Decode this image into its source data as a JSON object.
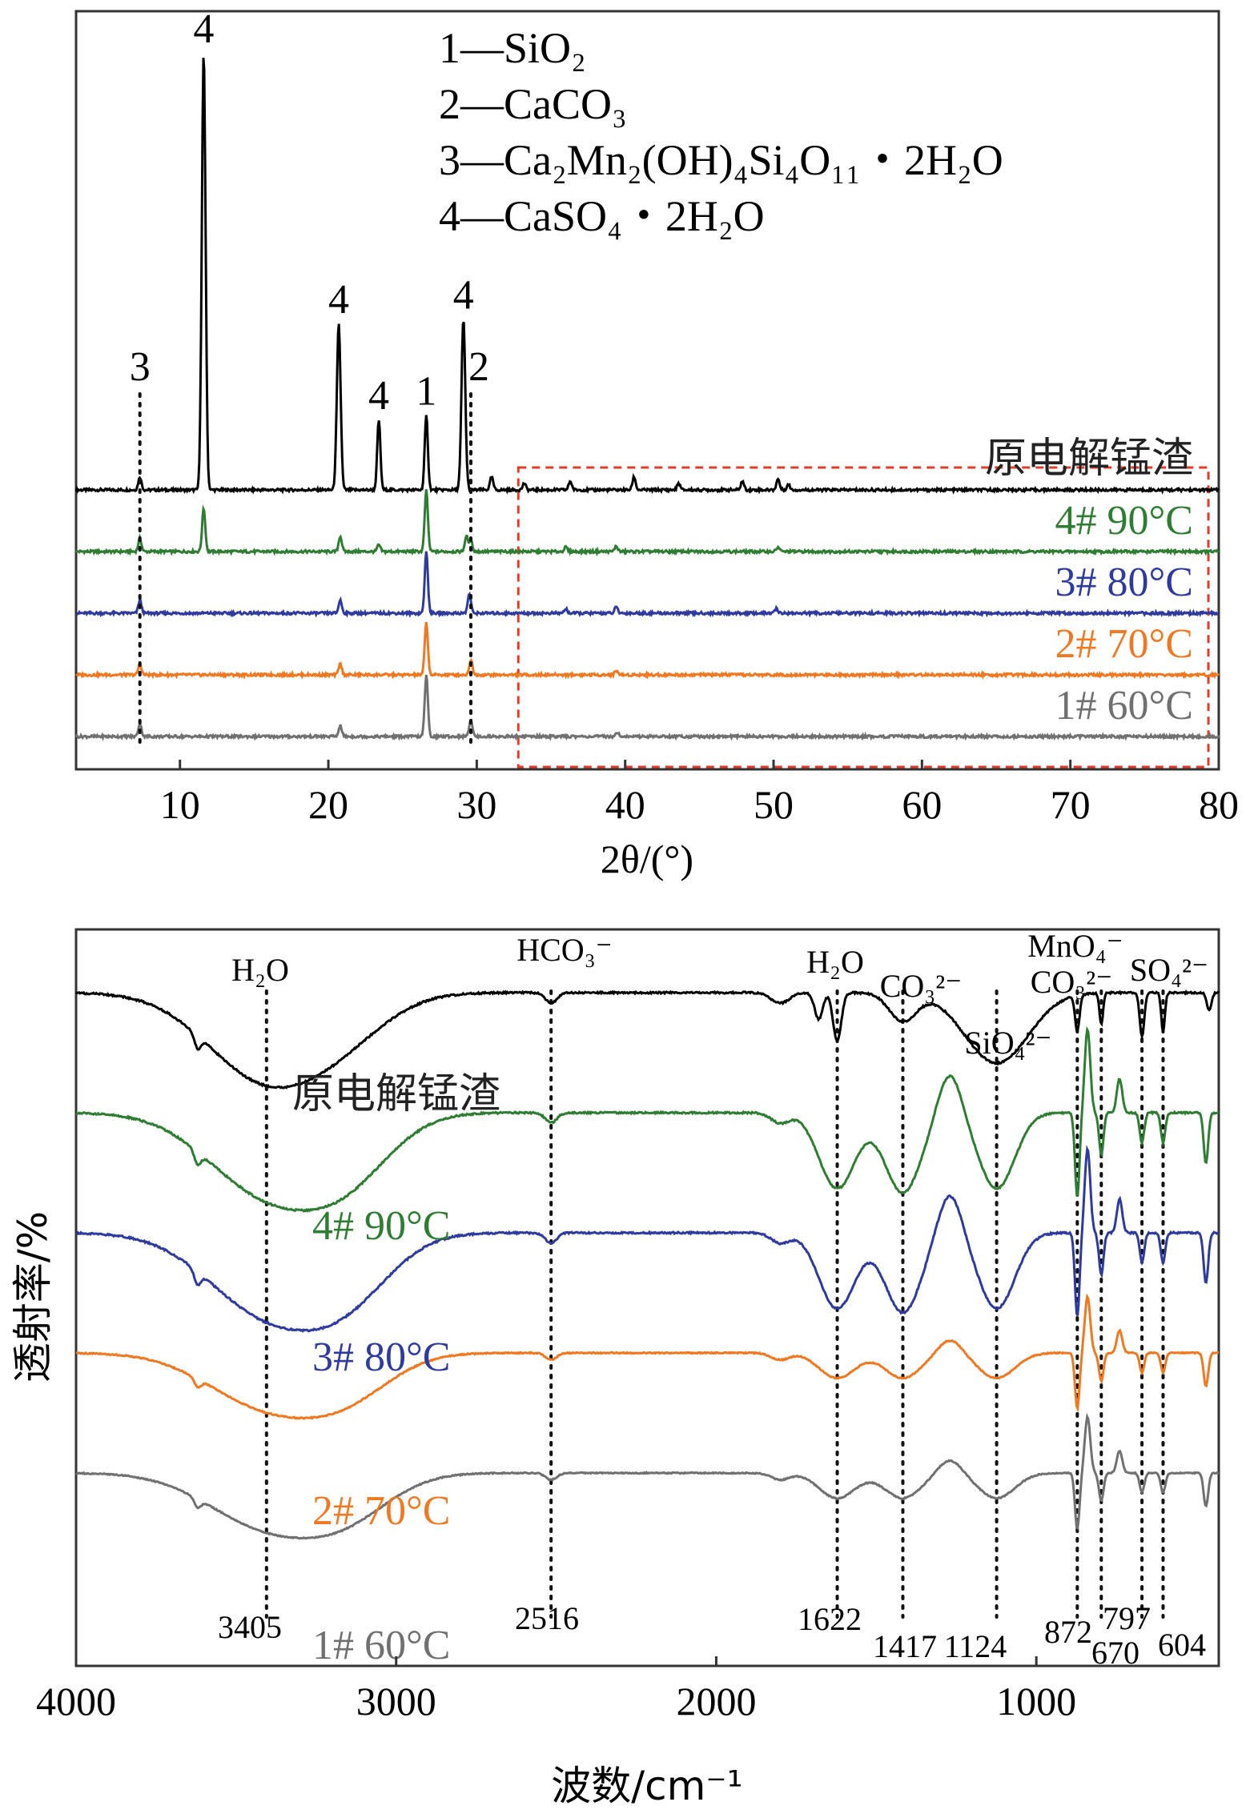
{
  "chart_data": [
    {
      "type": "line",
      "title": "",
      "xlabel": "2θ/(°)",
      "ylabel": "",
      "xlim": [
        3,
        80
      ],
      "xticks": [
        10,
        20,
        30,
        40,
        50,
        60,
        70,
        80
      ],
      "xtick_labels": [
        "10",
        "20",
        "30",
        "40",
        "50",
        "60",
        "70",
        "80"
      ],
      "legend": [
        {
          "num": "1",
          "sep": "—",
          "text": "SiO₂"
        },
        {
          "num": "2",
          "sep": "—",
          "text": "CaCO₃"
        },
        {
          "num": "3",
          "sep": "—",
          "text": "Ca₂Mn₂(OH)₄Si₄O₁₁・2H₂O"
        },
        {
          "num": "4",
          "sep": "—",
          "text": "CaSO₄・2H₂O"
        }
      ],
      "peak_labels": [
        {
          "label": "3",
          "x": 7.3,
          "dotted": true
        },
        {
          "label": "4",
          "x": 11.6,
          "dotted": false
        },
        {
          "label": "4",
          "x": 20.7,
          "dotted": false
        },
        {
          "label": "4",
          "x": 23.4,
          "dotted": false
        },
        {
          "label": "1",
          "x": 26.6,
          "dotted": false
        },
        {
          "label": "4",
          "x": 29.1,
          "dotted": false
        },
        {
          "label": "2",
          "x": 29.6,
          "dotted": true
        }
      ],
      "highlight_region": {
        "x_from": 32.8,
        "x_to": 79.3,
        "style": "red dashed box"
      },
      "series": [
        {
          "name": "原电解锰渣",
          "color": "#000000",
          "baseline": 0,
          "peaks": [
            [
              7.3,
              0.03
            ],
            [
              11.6,
              1.0
            ],
            [
              20.7,
              0.38
            ],
            [
              23.4,
              0.16
            ],
            [
              26.6,
              0.17
            ],
            [
              29.1,
              0.39
            ],
            [
              31.0,
              0.03
            ],
            [
              33.2,
              0.015
            ],
            [
              36.3,
              0.02
            ],
            [
              40.6,
              0.03
            ],
            [
              43.6,
              0.015
            ],
            [
              47.9,
              0.02
            ],
            [
              50.3,
              0.025
            ],
            [
              51.0,
              0.012
            ]
          ]
        },
        {
          "name": "4# 90°C",
          "color": "#2e7d32",
          "baseline": 0.14,
          "peaks": [
            [
              7.3,
              0.03
            ],
            [
              11.6,
              0.1
            ],
            [
              20.8,
              0.035
            ],
            [
              23.4,
              0.015
            ],
            [
              26.6,
              0.14
            ],
            [
              29.3,
              0.035
            ],
            [
              29.6,
              0.025
            ],
            [
              36.0,
              0.01
            ],
            [
              39.4,
              0.012
            ],
            [
              50.3,
              0.01
            ]
          ]
        },
        {
          "name": "3# 80°C",
          "color": "#2e3a9e",
          "baseline": 0.28,
          "peaks": [
            [
              7.3,
              0.03
            ],
            [
              20.8,
              0.03
            ],
            [
              26.6,
              0.14
            ],
            [
              29.5,
              0.045
            ],
            [
              36.0,
              0.01
            ],
            [
              39.4,
              0.014
            ],
            [
              50.2,
              0.01
            ]
          ]
        },
        {
          "name": "2# 70°C",
          "color": "#f07820",
          "baseline": 0.42,
          "peaks": [
            [
              7.3,
              0.025
            ],
            [
              20.8,
              0.025
            ],
            [
              26.6,
              0.12
            ],
            [
              29.6,
              0.035
            ],
            [
              39.4,
              0.01
            ]
          ]
        },
        {
          "name": "1# 60°C",
          "color": "#707070",
          "baseline": 0.56,
          "peaks": [
            [
              7.3,
              0.03
            ],
            [
              20.8,
              0.025
            ],
            [
              26.6,
              0.14
            ],
            [
              29.6,
              0.04
            ],
            [
              39.5,
              0.01
            ]
          ]
        }
      ]
    },
    {
      "type": "line",
      "title": "",
      "xlabel": "波数/cm⁻¹",
      "ylabel": "透射率/%",
      "xlim": [
        4000,
        430
      ],
      "xticks": [
        4000,
        3000,
        2000,
        1000
      ],
      "xtick_labels": [
        "4000",
        "3000",
        "2000",
        "1000"
      ],
      "band_labels": [
        {
          "label": "H₂O",
          "x": 3405
        },
        {
          "label": "HCO₃⁻",
          "x": 2516
        },
        {
          "label": "H₂O",
          "x": 1622
        },
        {
          "label": "CO₃²⁻",
          "x": 1417
        },
        {
          "label": "SiO₄²⁻",
          "x": 1124
        },
        {
          "label": "MnO₄⁻",
          "x": 797
        },
        {
          "label": "CO₃²⁻",
          "x": 872
        },
        {
          "label": "SO₄²⁻",
          "x": 604
        }
      ],
      "wavenumber_marks": [
        "3405",
        "2516",
        "1622",
        "1417",
        "1124",
        "872",
        "797",
        "670",
        "604"
      ],
      "wavenumber_values": [
        3405,
        2516,
        1622,
        1417,
        1124,
        872,
        797,
        670,
        604
      ],
      "series": [
        {
          "name": "原电解锰渣",
          "color": "#000000",
          "offset": 0
        },
        {
          "name": "4# 90°C",
          "color": "#2e7d32",
          "offset": 1
        },
        {
          "name": "3# 80°C",
          "color": "#2e3a9e",
          "offset": 2
        },
        {
          "name": "2# 70°C",
          "color": "#f07820",
          "offset": 3
        },
        {
          "name": "1# 60°C",
          "color": "#707070",
          "offset": 4
        }
      ]
    }
  ]
}
